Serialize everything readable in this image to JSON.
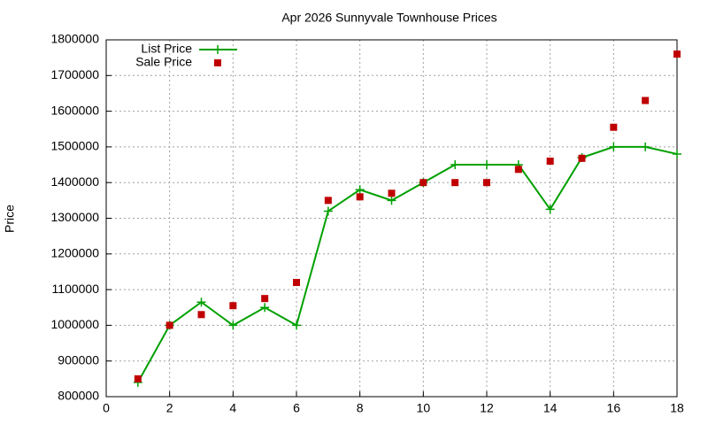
{
  "chart_data": {
    "type": "line",
    "title": "Apr 2026 Sunnyvale Townhouse Prices",
    "y_label": "Price",
    "x": [
      1,
      2,
      3,
      4,
      5,
      6,
      7,
      8,
      9,
      10,
      11,
      12,
      13,
      14,
      15,
      16,
      17,
      18
    ],
    "series": [
      {
        "name": "List Price",
        "color": "#00a000",
        "style": "linespoints",
        "values": [
          840000,
          1000000,
          1065000,
          1000000,
          1050000,
          1000000,
          1320000,
          1380000,
          1350000,
          1400000,
          1450000,
          1450000,
          1450000,
          1325000,
          1470000,
          1500000,
          1500000,
          1480000
        ]
      },
      {
        "name": "Sale Price",
        "color": "#c00000",
        "style": "points",
        "values": [
          850000,
          1000000,
          1030000,
          1055000,
          1075000,
          1120000,
          1350000,
          1360000,
          1370000,
          1400000,
          1400000,
          1400000,
          1437000,
          1460000,
          1468000,
          1555000,
          1630000,
          1760000
        ]
      }
    ],
    "xlim": [
      0,
      18
    ],
    "xticks": [
      0,
      2,
      4,
      6,
      8,
      10,
      12,
      14,
      16,
      18
    ],
    "ylim": [
      800000,
      1800000
    ],
    "yticks": [
      800000,
      900000,
      1000000,
      1100000,
      1200000,
      1300000,
      1400000,
      1500000,
      1600000,
      1700000,
      1800000
    ],
    "grid": true,
    "legend": "top-left"
  }
}
